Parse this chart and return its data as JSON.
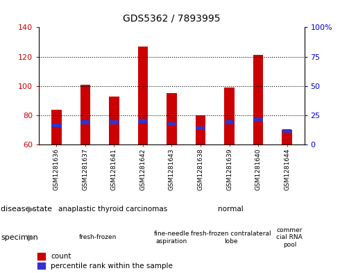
{
  "title": "GDS5362 / 7893995",
  "samples": [
    "GSM1281636",
    "GSM1281637",
    "GSM1281641",
    "GSM1281642",
    "GSM1281643",
    "GSM1281638",
    "GSM1281639",
    "GSM1281640",
    "GSM1281644"
  ],
  "count_values": [
    84,
    101,
    93,
    127,
    95,
    80,
    99,
    121,
    70
  ],
  "percentile_y": [
    72,
    74,
    74,
    75,
    73,
    70,
    74,
    76,
    68
  ],
  "ymin": 60,
  "ymax": 140,
  "yticks_left": [
    60,
    80,
    100,
    120,
    140
  ],
  "yticks_right_labels": [
    "0",
    "25",
    "50",
    "75",
    "100%"
  ],
  "yticks_right_pos": [
    60,
    80,
    100,
    120,
    140
  ],
  "bar_color": "#cc0000",
  "percentile_color": "#3333cc",
  "bar_width": 0.35,
  "disease_state_groups": [
    {
      "label": "anaplastic thyroid carcinomas",
      "start": 0,
      "end": 5,
      "color": "#99ee99"
    },
    {
      "label": "normal",
      "start": 5,
      "end": 8,
      "color": "#55ee55"
    },
    {
      "label": "",
      "start": 8,
      "end": 9,
      "color": "#99ee99"
    }
  ],
  "specimen_groups": [
    {
      "label": "fresh-frozen",
      "start": 0,
      "end": 4,
      "color": "#ee99ee"
    },
    {
      "label": "fine-needle\naspiration",
      "start": 4,
      "end": 5,
      "color": "#ffbbff"
    },
    {
      "label": "fresh-frozen contralateral\nlobe",
      "start": 5,
      "end": 8,
      "color": "#ee99ee"
    },
    {
      "label": "commer\ncial RNA\npool",
      "start": 8,
      "end": 9,
      "color": "#ffbbff"
    }
  ],
  "xlabel_bg_color": "#c8c8c8",
  "tick_color_left": "#cc0000",
  "tick_color_right": "#0000cc",
  "legend_items": [
    "count",
    "percentile rank within the sample"
  ]
}
